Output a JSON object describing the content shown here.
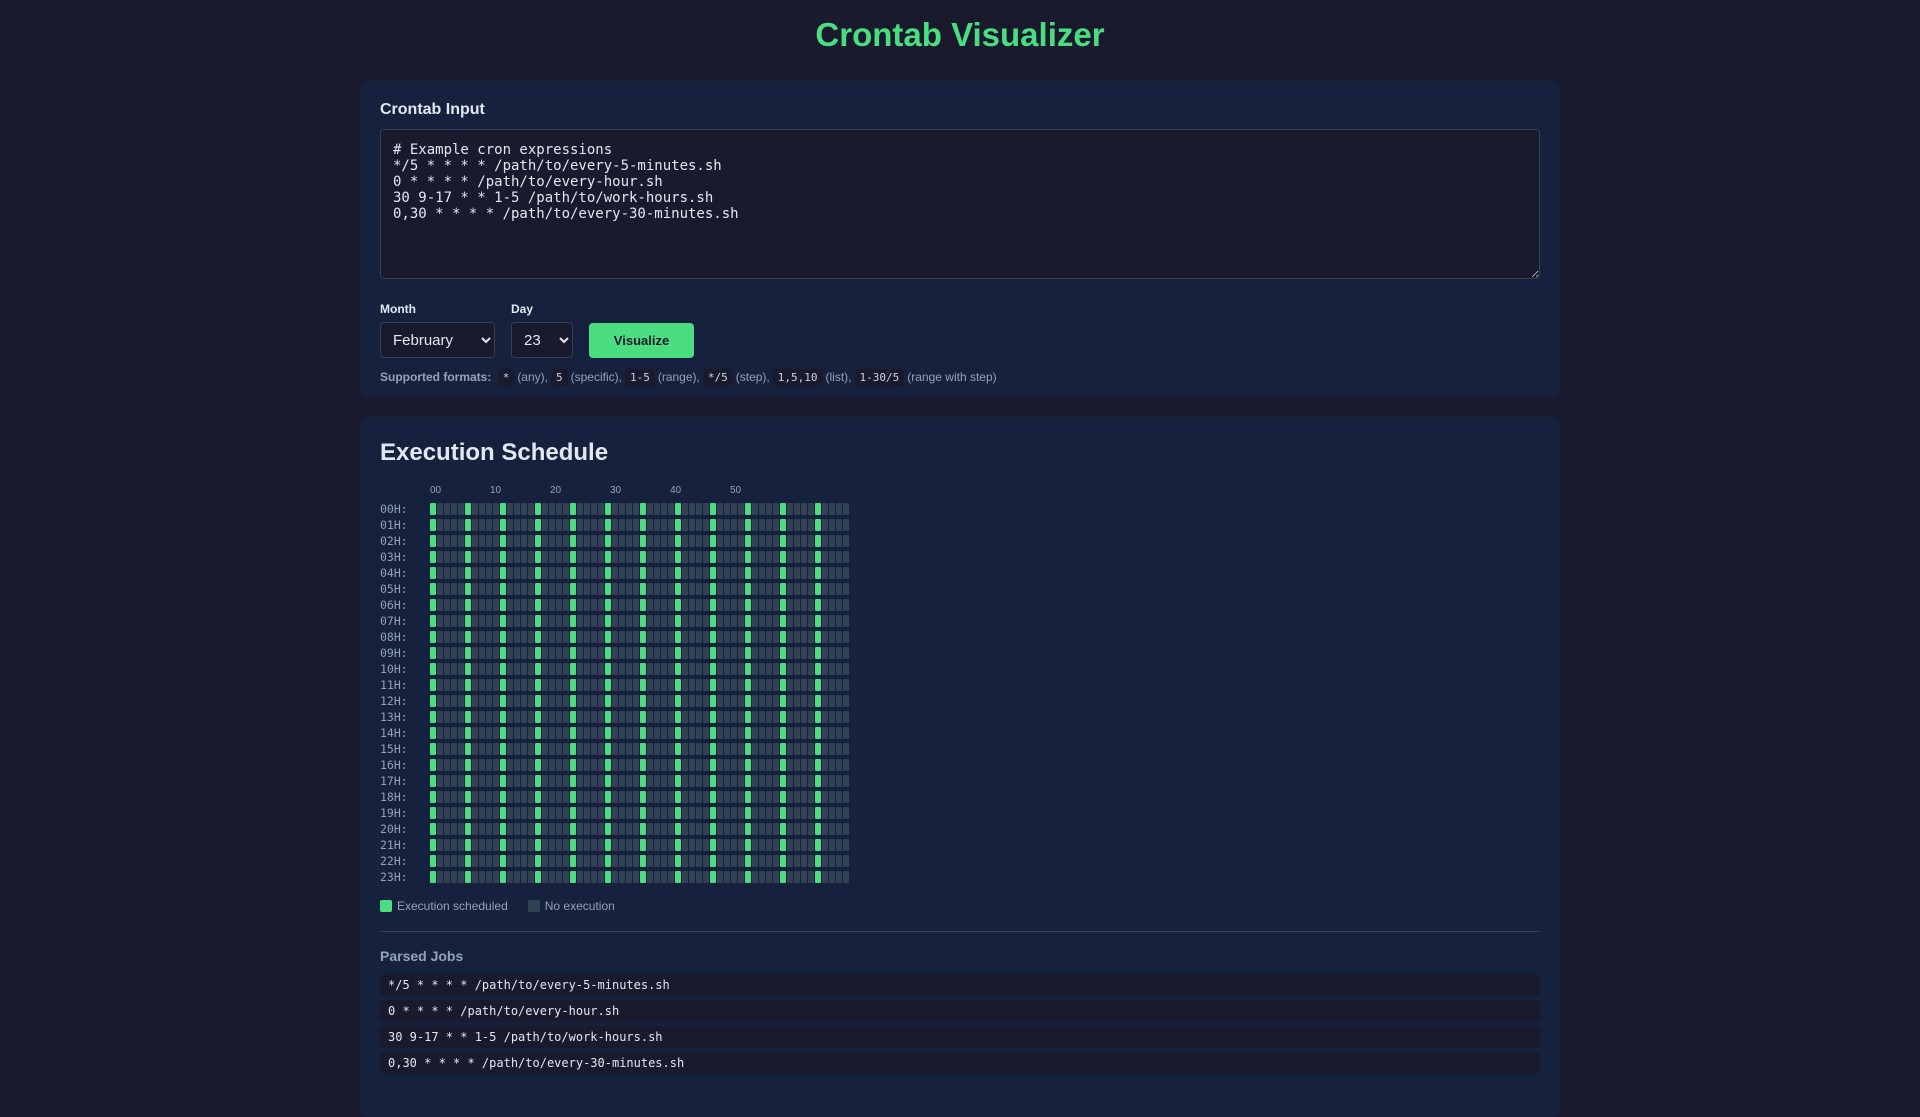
{
  "title": "Crontab Visualizer",
  "input": {
    "heading": "Crontab Input",
    "value": "# Example cron expressions\n*/5 * * * * /path/to/every-5-minutes.sh\n0 * * * * /path/to/every-hour.sh\n30 9-17 * * 1-5 /path/to/work-hours.sh\n0,30 * * * * /path/to/every-30-minutes.sh",
    "month_label": "Month",
    "month_value": "February",
    "day_label": "Day",
    "day_value": "23",
    "visualize_label": "Visualize"
  },
  "formats": {
    "label": "Supported formats:",
    "items": [
      {
        "code": "*",
        "desc": "(any),"
      },
      {
        "code": "5",
        "desc": "(specific),"
      },
      {
        "code": "1-5",
        "desc": "(range),"
      },
      {
        "code": "*/5",
        "desc": "(step),"
      },
      {
        "code": "1,5,10",
        "desc": "(list),"
      },
      {
        "code": "1-30/5",
        "desc": "(range with step)"
      }
    ]
  },
  "schedule": {
    "heading": "Execution Schedule",
    "minute_labels": [
      "00",
      "10",
      "20",
      "30",
      "40",
      "50"
    ],
    "hours": [
      "00H:",
      "01H:",
      "02H:",
      "03H:",
      "04H:",
      "05H:",
      "06H:",
      "07H:",
      "08H:",
      "09H:",
      "10H:",
      "11H:",
      "12H:",
      "13H:",
      "14H:",
      "15H:",
      "16H:",
      "17H:",
      "18H:",
      "19H:",
      "20H:",
      "21H:",
      "22H:",
      "23H:"
    ],
    "scheduled_minutes": [
      0,
      5,
      10,
      15,
      20,
      25,
      30,
      35,
      40,
      45,
      50,
      55
    ],
    "colors": {
      "scheduled": "#4ade80",
      "none": "#334155"
    }
  },
  "legend": {
    "scheduled": "Execution scheduled",
    "none": "No execution"
  },
  "parsed": {
    "heading": "Parsed Jobs",
    "jobs": [
      "*/5 * * * * /path/to/every-5-minutes.sh",
      "0 * * * * /path/to/every-hour.sh",
      "30 9-17 * * 1-5 /path/to/work-hours.sh",
      "0,30 * * * * /path/to/every-30-minutes.sh"
    ]
  }
}
